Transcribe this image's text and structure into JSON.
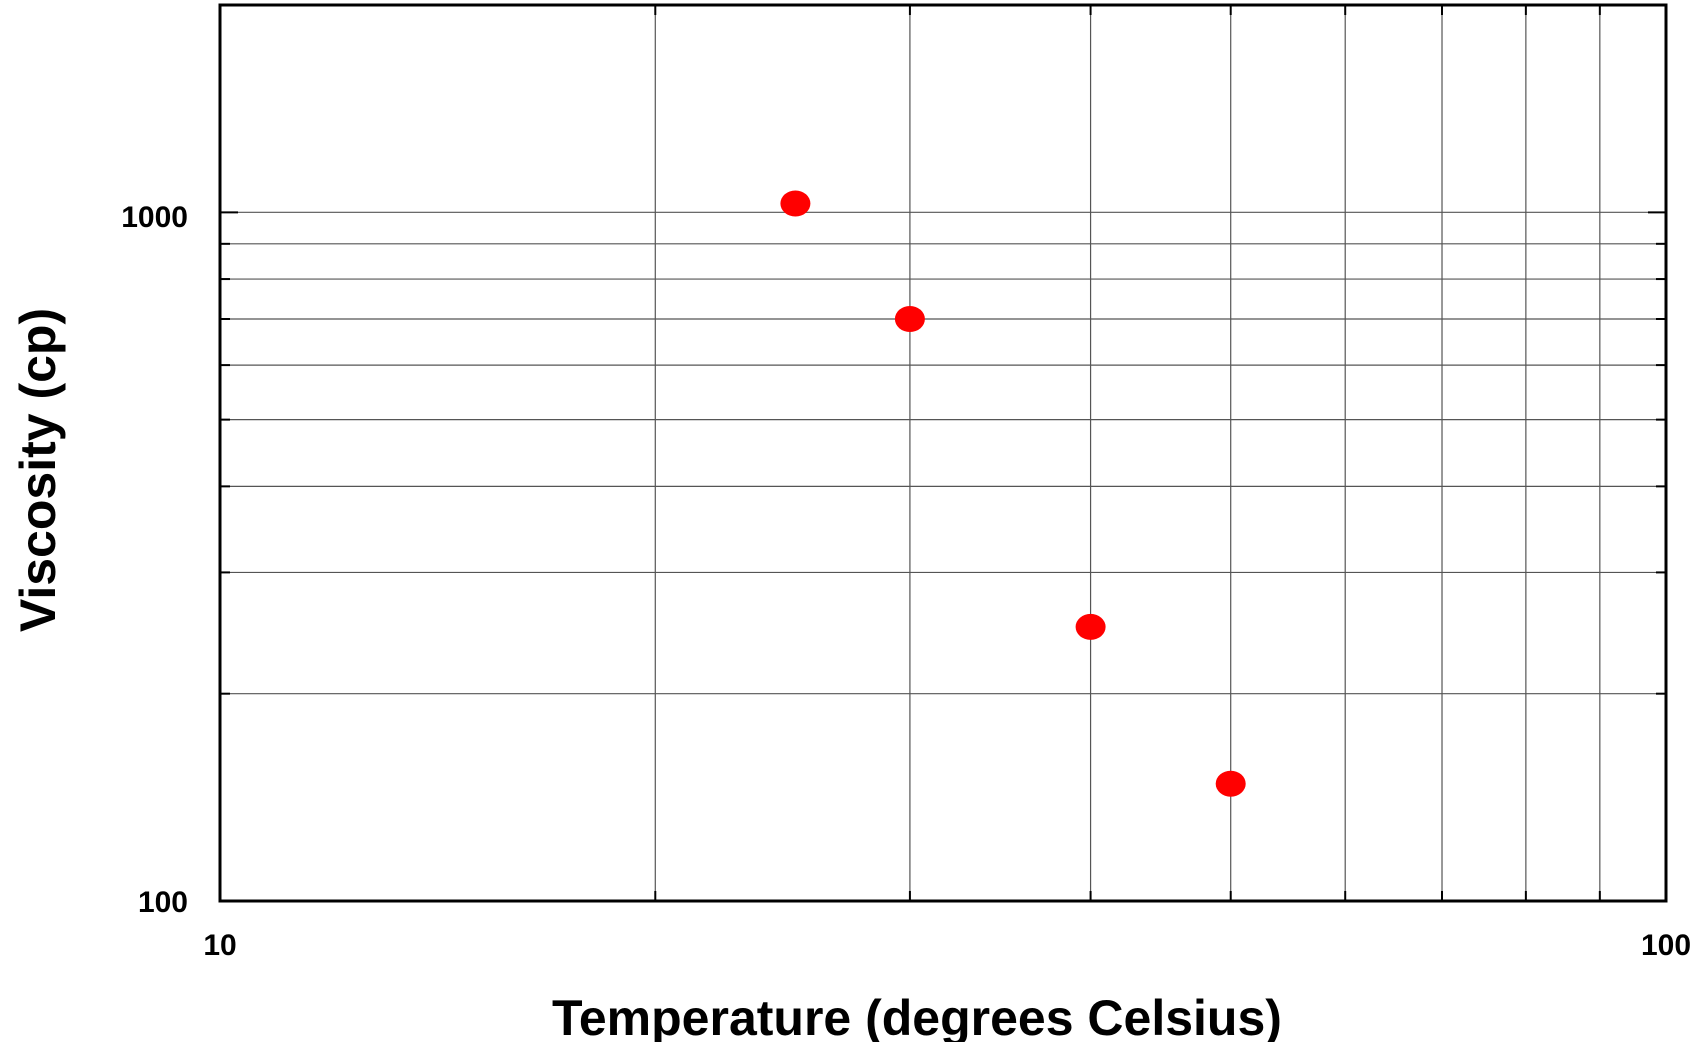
{
  "chart_data": {
    "type": "scatter",
    "xlabel": "Temperature (degrees Celsius)",
    "ylabel": "Viscosity (cp)",
    "x_scale": "log",
    "y_scale": "log",
    "xlim": [
      10,
      100
    ],
    "ylim": [
      100,
      2000
    ],
    "x_ticks": [
      10,
      100
    ],
    "x_tick_labels": [
      "10",
      "100"
    ],
    "y_ticks": [
      100,
      1000
    ],
    "y_tick_labels": [
      "100",
      "1000"
    ],
    "grid": true,
    "marker_color": "#ff0000",
    "series": [
      {
        "x": [
          25,
          30,
          40,
          50
        ],
        "y": [
          1030,
          700,
          250,
          148
        ]
      }
    ]
  }
}
